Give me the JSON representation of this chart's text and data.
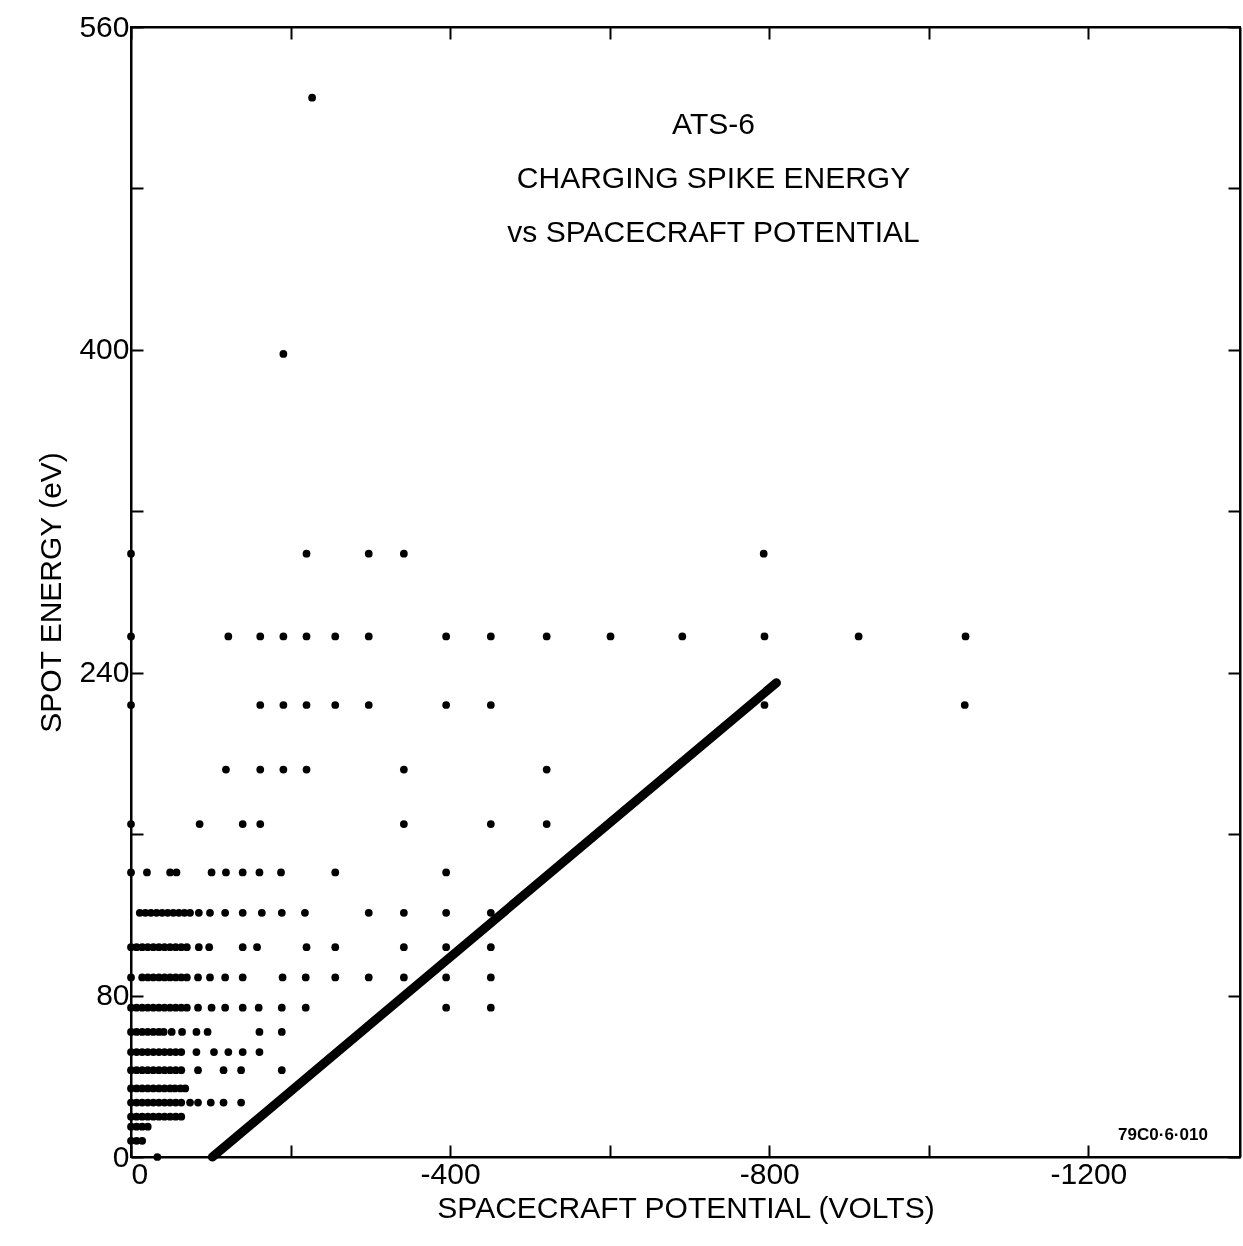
{
  "chart_data": {
    "type": "scatter",
    "title": "ATS-6\nCHARGING SPIKE ENERGY\nvs SPACECRAFT POTENTIAL",
    "xlabel": "SPACECRAFT POTENTIAL (VOLTS)",
    "ylabel": "SPOT ENERGY (eV)",
    "xlim": [
      0,
      -1390
    ],
    "xticks": [
      0,
      {
        "value": -200,
        "label": null
      },
      -400,
      {
        "value": -600,
        "label": null
      },
      -800,
      {
        "value": -1000,
        "label": null
      },
      -1200
    ],
    "ylim": [
      0,
      560
    ],
    "yticks": [
      0,
      80,
      {
        "value": 160,
        "label": null
      },
      240,
      {
        "value": 320,
        "label": null
      },
      400,
      {
        "value": 480,
        "label": null
      },
      560
    ],
    "grid": false,
    "annotations": [
      "79C0·6·010"
    ],
    "series": [
      {
        "marker": "circle",
        "color": "#000000",
        "x": [
          -33,
          0,
          -7,
          -14,
          0,
          -7,
          -14,
          -21,
          0,
          -7,
          -14,
          -21,
          -28,
          -35,
          -42,
          -49,
          -56,
          -63,
          0,
          -7,
          -14,
          -21,
          -28,
          -35,
          -42,
          -49,
          -56,
          -63,
          -74,
          -84,
          -100,
          -116,
          -138,
          0,
          -7,
          -14,
          -21,
          -28,
          -35,
          -42,
          -49,
          -55,
          -62,
          -68,
          0,
          -7,
          -14,
          -21,
          -28,
          -35,
          -42,
          -49,
          -56,
          -63,
          -84,
          -116,
          -138,
          -189,
          0,
          -7,
          -14,
          -21,
          -28,
          -35,
          -42,
          -49,
          -56,
          -63,
          -82,
          -104,
          -122,
          -140,
          -161,
          0,
          -7,
          -14,
          -21,
          -28,
          -35,
          -41,
          -51,
          -64,
          -82,
          -96,
          -161,
          -189,
          0,
          -7,
          -14,
          -21,
          -28,
          -35,
          -42,
          -49,
          -56,
          -63,
          -70,
          -84,
          -101,
          -118,
          -140,
          -160,
          -189,
          -219,
          -395,
          -451,
          0,
          -14,
          -21,
          -28,
          -35,
          -42,
          -49,
          -56,
          -63,
          -70,
          -84,
          -99,
          -118,
          -140,
          -190,
          -219,
          -256,
          -298,
          -342,
          -395,
          -451,
          0,
          -7,
          -14,
          -21,
          -28,
          -35,
          -42,
          -49,
          -56,
          -63,
          -70,
          -85,
          -98,
          -140,
          -158,
          -220,
          -256,
          -342,
          -395,
          -451,
          -11,
          -18,
          -25,
          -32,
          -39,
          -46,
          -53,
          -60,
          -67,
          -74,
          -85,
          -99,
          -118,
          -140,
          -164,
          -189,
          -218,
          -298,
          -342,
          -395,
          -451,
          0,
          -20,
          -49,
          -57,
          -101,
          -119,
          -140,
          -161,
          -188,
          -256,
          -395,
          0,
          -86,
          -140,
          -162,
          -342,
          -451,
          -521,
          -119,
          -162,
          -191,
          -220,
          -342,
          -521,
          0,
          -162,
          -191,
          -220,
          -256,
          -298,
          -395,
          -451,
          -794,
          -1045,
          0,
          -122,
          -162,
          -191,
          -220,
          -256,
          -298,
          -395,
          -451,
          -521,
          -601,
          -691,
          -794,
          -912,
          -1046,
          0,
          -220,
          -298,
          -342,
          -793,
          -191,
          -227
        ],
        "values": [
          0,
          8,
          8,
          8,
          15,
          15,
          15,
          15,
          20,
          20,
          20,
          20,
          20,
          20,
          20,
          20,
          20,
          20,
          27,
          27,
          27,
          27,
          27,
          27,
          27,
          27,
          27,
          27,
          27,
          27,
          27,
          27,
          27,
          34,
          34,
          34,
          34,
          34,
          34,
          34,
          34,
          34,
          34,
          34,
          43,
          43,
          43,
          43,
          43,
          43,
          43,
          43,
          43,
          43,
          43,
          43,
          43,
          43,
          52,
          52,
          52,
          52,
          52,
          52,
          52,
          52,
          52,
          52,
          52,
          52,
          52,
          52,
          52,
          62,
          62,
          62,
          62,
          62,
          62,
          62,
          62,
          62,
          62,
          62,
          62,
          62,
          74,
          74,
          74,
          74,
          74,
          74,
          74,
          74,
          74,
          74,
          74,
          74,
          74,
          74,
          74,
          74,
          74,
          74,
          74,
          74,
          89,
          89,
          89,
          89,
          89,
          89,
          89,
          89,
          89,
          89,
          89,
          89,
          89,
          89,
          89,
          89,
          89,
          89,
          89,
          89,
          89,
          104,
          104,
          104,
          104,
          104,
          104,
          104,
          104,
          104,
          104,
          104,
          104,
          104,
          104,
          104,
          104,
          104,
          104,
          104,
          104,
          121,
          121,
          121,
          121,
          121,
          121,
          121,
          121,
          121,
          121,
          121,
          121,
          121,
          121,
          121,
          121,
          121,
          121,
          121,
          121,
          121,
          141,
          141,
          141,
          141,
          141,
          141,
          141,
          141,
          141,
          141,
          141,
          165,
          165,
          165,
          165,
          165,
          165,
          165,
          192,
          192,
          192,
          192,
          192,
          192,
          224,
          224,
          224,
          224,
          224,
          224,
          224,
          224,
          224,
          224,
          258,
          258,
          258,
          258,
          258,
          258,
          258,
          258,
          258,
          258,
          258,
          258,
          258,
          258,
          258,
          299,
          299,
          299,
          299,
          299,
          398,
          525
        ]
      },
      {
        "type": "line",
        "color": "#000000",
        "x": [
          -102,
          -809
        ],
        "values": [
          0,
          235
        ]
      }
    ]
  }
}
